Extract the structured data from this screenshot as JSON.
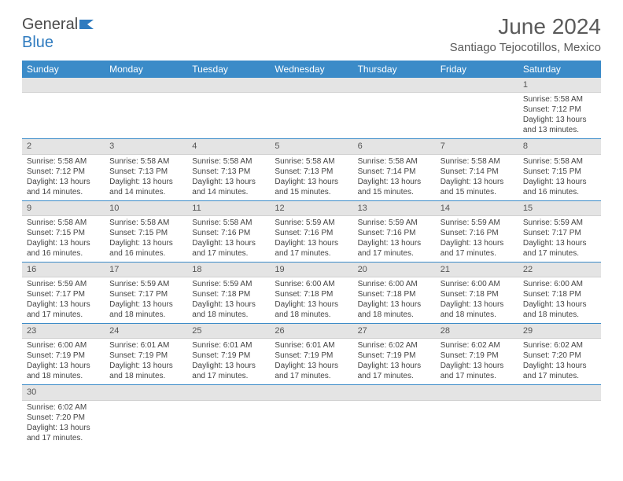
{
  "brand": {
    "part1": "General",
    "part2": "Blue"
  },
  "title": "June 2024",
  "location": "Santiago Tejocotillos, Mexico",
  "colors": {
    "header_bg": "#3b8bc8",
    "header_text": "#ffffff",
    "daynum_bg": "#e4e4e4",
    "week_border": "#3b8bc8",
    "text": "#444444",
    "title_text": "#5a5a5a"
  },
  "typography": {
    "title_size_pt": 21,
    "location_size_pt": 11,
    "dayheader_size_pt": 9,
    "body_size_pt": 7.5
  },
  "day_headers": [
    "Sunday",
    "Monday",
    "Tuesday",
    "Wednesday",
    "Thursday",
    "Friday",
    "Saturday"
  ],
  "weeks": [
    [
      null,
      null,
      null,
      null,
      null,
      null,
      {
        "n": "1",
        "sunrise": "Sunrise: 5:58 AM",
        "sunset": "Sunset: 7:12 PM",
        "daylight": "Daylight: 13 hours and 13 minutes."
      }
    ],
    [
      {
        "n": "2",
        "sunrise": "Sunrise: 5:58 AM",
        "sunset": "Sunset: 7:12 PM",
        "daylight": "Daylight: 13 hours and 14 minutes."
      },
      {
        "n": "3",
        "sunrise": "Sunrise: 5:58 AM",
        "sunset": "Sunset: 7:13 PM",
        "daylight": "Daylight: 13 hours and 14 minutes."
      },
      {
        "n": "4",
        "sunrise": "Sunrise: 5:58 AM",
        "sunset": "Sunset: 7:13 PM",
        "daylight": "Daylight: 13 hours and 14 minutes."
      },
      {
        "n": "5",
        "sunrise": "Sunrise: 5:58 AM",
        "sunset": "Sunset: 7:13 PM",
        "daylight": "Daylight: 13 hours and 15 minutes."
      },
      {
        "n": "6",
        "sunrise": "Sunrise: 5:58 AM",
        "sunset": "Sunset: 7:14 PM",
        "daylight": "Daylight: 13 hours and 15 minutes."
      },
      {
        "n": "7",
        "sunrise": "Sunrise: 5:58 AM",
        "sunset": "Sunset: 7:14 PM",
        "daylight": "Daylight: 13 hours and 15 minutes."
      },
      {
        "n": "8",
        "sunrise": "Sunrise: 5:58 AM",
        "sunset": "Sunset: 7:15 PM",
        "daylight": "Daylight: 13 hours and 16 minutes."
      }
    ],
    [
      {
        "n": "9",
        "sunrise": "Sunrise: 5:58 AM",
        "sunset": "Sunset: 7:15 PM",
        "daylight": "Daylight: 13 hours and 16 minutes."
      },
      {
        "n": "10",
        "sunrise": "Sunrise: 5:58 AM",
        "sunset": "Sunset: 7:15 PM",
        "daylight": "Daylight: 13 hours and 16 minutes."
      },
      {
        "n": "11",
        "sunrise": "Sunrise: 5:58 AM",
        "sunset": "Sunset: 7:16 PM",
        "daylight": "Daylight: 13 hours and 17 minutes."
      },
      {
        "n": "12",
        "sunrise": "Sunrise: 5:59 AM",
        "sunset": "Sunset: 7:16 PM",
        "daylight": "Daylight: 13 hours and 17 minutes."
      },
      {
        "n": "13",
        "sunrise": "Sunrise: 5:59 AM",
        "sunset": "Sunset: 7:16 PM",
        "daylight": "Daylight: 13 hours and 17 minutes."
      },
      {
        "n": "14",
        "sunrise": "Sunrise: 5:59 AM",
        "sunset": "Sunset: 7:16 PM",
        "daylight": "Daylight: 13 hours and 17 minutes."
      },
      {
        "n": "15",
        "sunrise": "Sunrise: 5:59 AM",
        "sunset": "Sunset: 7:17 PM",
        "daylight": "Daylight: 13 hours and 17 minutes."
      }
    ],
    [
      {
        "n": "16",
        "sunrise": "Sunrise: 5:59 AM",
        "sunset": "Sunset: 7:17 PM",
        "daylight": "Daylight: 13 hours and 17 minutes."
      },
      {
        "n": "17",
        "sunrise": "Sunrise: 5:59 AM",
        "sunset": "Sunset: 7:17 PM",
        "daylight": "Daylight: 13 hours and 18 minutes."
      },
      {
        "n": "18",
        "sunrise": "Sunrise: 5:59 AM",
        "sunset": "Sunset: 7:18 PM",
        "daylight": "Daylight: 13 hours and 18 minutes."
      },
      {
        "n": "19",
        "sunrise": "Sunrise: 6:00 AM",
        "sunset": "Sunset: 7:18 PM",
        "daylight": "Daylight: 13 hours and 18 minutes."
      },
      {
        "n": "20",
        "sunrise": "Sunrise: 6:00 AM",
        "sunset": "Sunset: 7:18 PM",
        "daylight": "Daylight: 13 hours and 18 minutes."
      },
      {
        "n": "21",
        "sunrise": "Sunrise: 6:00 AM",
        "sunset": "Sunset: 7:18 PM",
        "daylight": "Daylight: 13 hours and 18 minutes."
      },
      {
        "n": "22",
        "sunrise": "Sunrise: 6:00 AM",
        "sunset": "Sunset: 7:18 PM",
        "daylight": "Daylight: 13 hours and 18 minutes."
      }
    ],
    [
      {
        "n": "23",
        "sunrise": "Sunrise: 6:00 AM",
        "sunset": "Sunset: 7:19 PM",
        "daylight": "Daylight: 13 hours and 18 minutes."
      },
      {
        "n": "24",
        "sunrise": "Sunrise: 6:01 AM",
        "sunset": "Sunset: 7:19 PM",
        "daylight": "Daylight: 13 hours and 18 minutes."
      },
      {
        "n": "25",
        "sunrise": "Sunrise: 6:01 AM",
        "sunset": "Sunset: 7:19 PM",
        "daylight": "Daylight: 13 hours and 17 minutes."
      },
      {
        "n": "26",
        "sunrise": "Sunrise: 6:01 AM",
        "sunset": "Sunset: 7:19 PM",
        "daylight": "Daylight: 13 hours and 17 minutes."
      },
      {
        "n": "27",
        "sunrise": "Sunrise: 6:02 AM",
        "sunset": "Sunset: 7:19 PM",
        "daylight": "Daylight: 13 hours and 17 minutes."
      },
      {
        "n": "28",
        "sunrise": "Sunrise: 6:02 AM",
        "sunset": "Sunset: 7:19 PM",
        "daylight": "Daylight: 13 hours and 17 minutes."
      },
      {
        "n": "29",
        "sunrise": "Sunrise: 6:02 AM",
        "sunset": "Sunset: 7:20 PM",
        "daylight": "Daylight: 13 hours and 17 minutes."
      }
    ],
    [
      {
        "n": "30",
        "sunrise": "Sunrise: 6:02 AM",
        "sunset": "Sunset: 7:20 PM",
        "daylight": "Daylight: 13 hours and 17 minutes."
      },
      null,
      null,
      null,
      null,
      null,
      null
    ]
  ]
}
